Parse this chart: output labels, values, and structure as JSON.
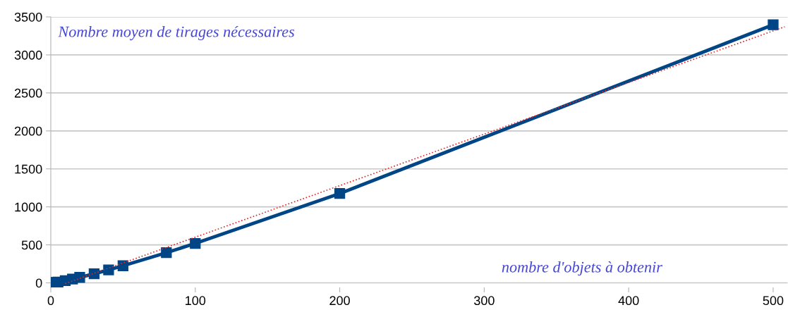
{
  "chart_data": {
    "type": "line",
    "xlabel": "nombre d'objets à obtenir",
    "ylabel": "Nombre moyen de tirages nécessaires",
    "series": [
      {
        "x": [
          1,
          2,
          3,
          5,
          10,
          15,
          20,
          30,
          40,
          50,
          80,
          100,
          200,
          500
        ],
        "values": [
          1,
          3,
          6,
          11,
          29,
          50,
          72,
          120,
          171,
          225,
          397,
          519,
          1176,
          3396
        ],
        "color": "#004586",
        "marker": "square",
        "line_style": "solid"
      },
      {
        "type": "line",
        "x": [
          10,
          508
        ],
        "values": [
          -10,
          3370
        ],
        "color": "#e0262b",
        "marker": "none",
        "line_style": "dotted"
      }
    ],
    "xlim": [
      0,
      510
    ],
    "xticks": [
      0,
      100,
      200,
      300,
      400,
      500
    ],
    "ylim": [
      -60,
      3500
    ],
    "yticks": [
      0,
      500,
      1000,
      1500,
      2000,
      2500,
      3000,
      3500
    ],
    "grid": "y",
    "legend": false
  }
}
